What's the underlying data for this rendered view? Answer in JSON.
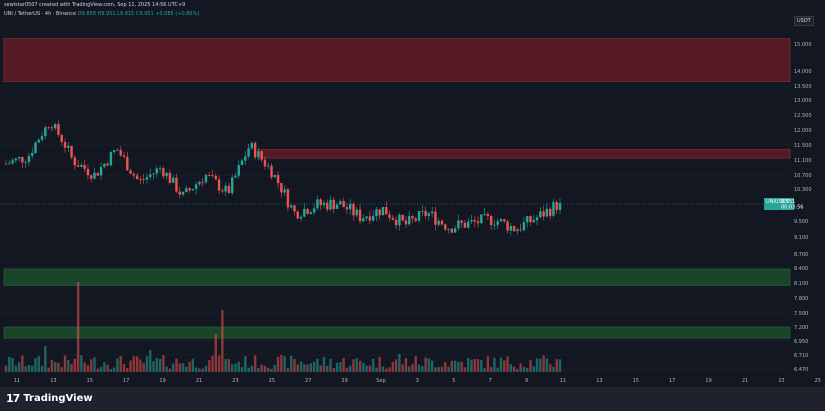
{
  "header": {
    "created_by": "sewistar0507 created with TradingView.com, Sep 11, 2025 14:56 UTC+9",
    "symbol_line": "UNI / TetherUS · 4h · Binance",
    "ohlc": "O9.858 H9.951 L9.815 C9.951 +0.085 (+0.86%)",
    "currency": "USDT"
  },
  "price_tag": {
    "symbol": "UNIUSDT",
    "price": "9.951",
    "countdown": "00:03:56"
  },
  "footer": {
    "brand": "TradingView",
    "logo_icon": "tradingview-logo-icon"
  },
  "colors": {
    "up": "#26a69a",
    "down": "#ef5350",
    "resistance": "#8b1e26",
    "support": "#1f6b2e",
    "background": "#131722"
  },
  "chart_data": {
    "type": "candlestick",
    "title": "",
    "price_axis_labels": [
      "15.000",
      "14.000",
      "13.500",
      "13.000",
      "12.500",
      "12.000",
      "11.500",
      "11.100",
      "10.700",
      "10.300",
      "9.500",
      "9.100",
      "8.700",
      "8.400",
      "8.100",
      "7.800",
      "7.500",
      "7.200",
      "6.950",
      "6.710",
      "6.470"
    ],
    "x_tick_labels": [
      "11",
      "13",
      "15",
      "17",
      "19",
      "21",
      "23",
      "25",
      "27",
      "29",
      "Sep",
      "3",
      "5",
      "7",
      "9",
      "11",
      "13",
      "15",
      "17",
      "19",
      "21",
      "23",
      "25"
    ],
    "last_price": 9.951,
    "zones": [
      {
        "kind": "resistance",
        "from": 13.65,
        "to": 15.2
      },
      {
        "kind": "resistance",
        "from": 11.15,
        "to": 11.38
      },
      {
        "kind": "support",
        "from": 8.05,
        "to": 8.38
      },
      {
        "kind": "support",
        "from": 7.0,
        "to": 7.2
      }
    ],
    "close_path": [
      11.0,
      11.2,
      12.3,
      11.1,
      10.7,
      11.4,
      10.5,
      10.9,
      10.1,
      10.7,
      10.2,
      11.5,
      10.8,
      9.7,
      9.9,
      9.95,
      9.6,
      9.8,
      9.4,
      9.7,
      9.35,
      9.45,
      9.55,
      9.3,
      9.6,
      9.951
    ]
  }
}
